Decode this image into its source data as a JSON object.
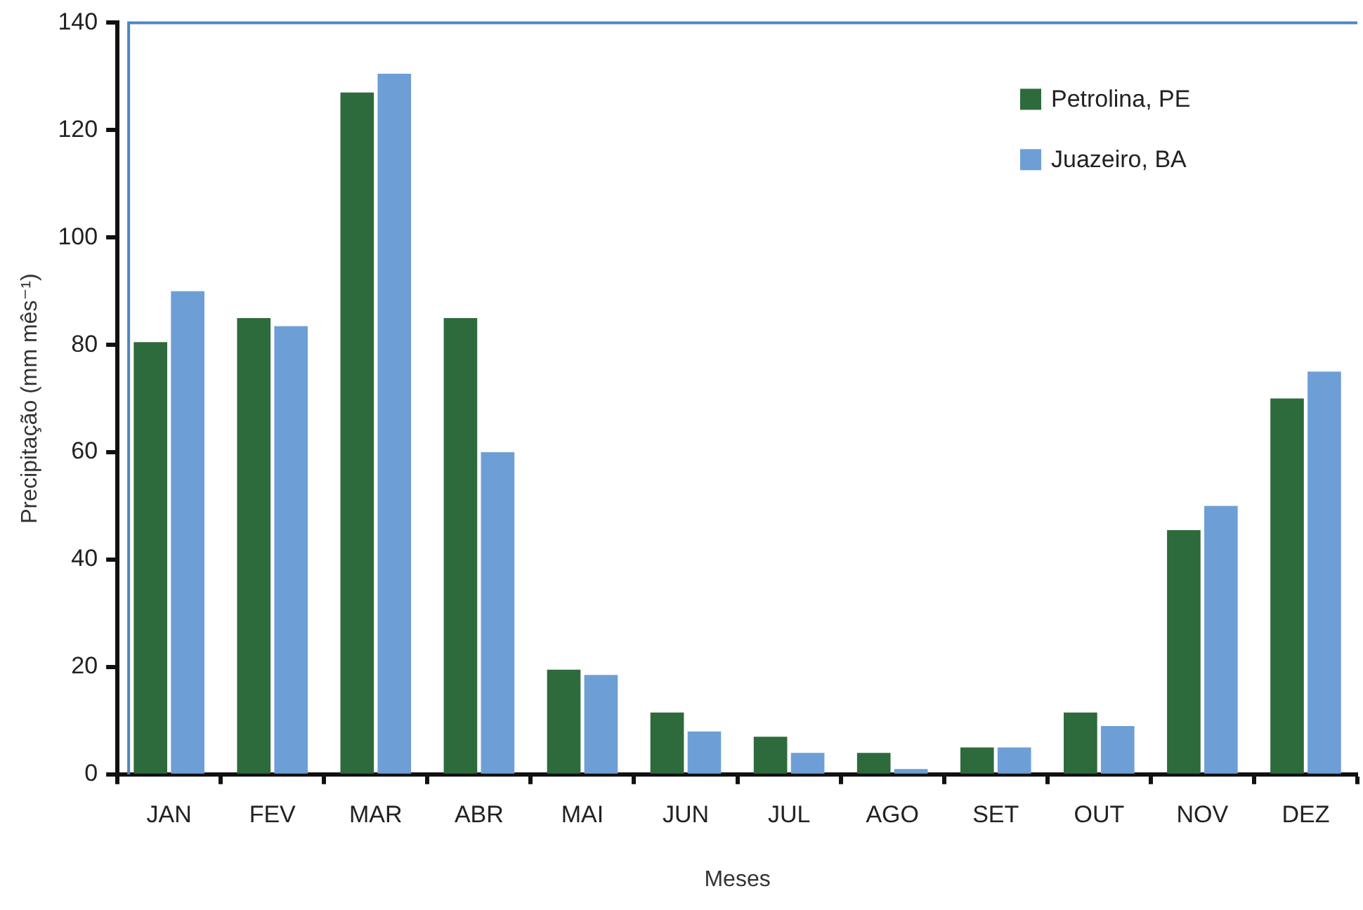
{
  "chart_data": {
    "type": "bar",
    "xlabel": "Meses",
    "ylabel": "Precipitação (mm mês⁻¹)",
    "categories": [
      "JAN",
      "FEV",
      "MAR",
      "ABR",
      "MAI",
      "JUN",
      "JUL",
      "AGO",
      "SET",
      "OUT",
      "NOV",
      "DEZ"
    ],
    "series": [
      {
        "name": "Petrolina, PE",
        "color": "#2d6a3c",
        "values": [
          80.5,
          85,
          127,
          85,
          19.5,
          11.5,
          7,
          4,
          5,
          11.5,
          45.5,
          70
        ]
      },
      {
        "name": "Juazeiro, BA",
        "color": "#6d9fd6",
        "values": [
          90,
          83.5,
          130.5,
          60,
          18.5,
          8,
          4,
          1,
          5,
          9,
          50,
          75
        ]
      }
    ],
    "ylim": [
      0,
      140
    ],
    "yticks": [
      0,
      20,
      40,
      60,
      80,
      100,
      120,
      140
    ],
    "grid": false,
    "legend": "top right"
  }
}
